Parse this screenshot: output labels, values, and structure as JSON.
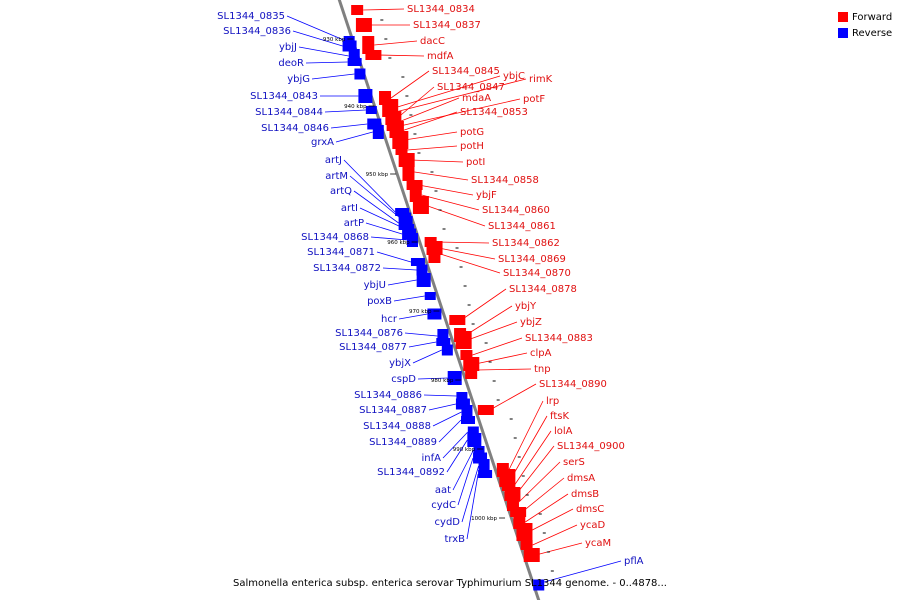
{
  "colors": {
    "forward": "#ff0000",
    "reverse": "#0000ff",
    "backbone": "#808080",
    "label_forward": "#e01010",
    "label_reverse": "#1010c0"
  },
  "legend": [
    {
      "label": "Forward",
      "color": "#ff0000"
    },
    {
      "label": "Reverse",
      "color": "#0000ff"
    }
  ],
  "caption": "Salmonella enterica subsp. enterica serovar Typhimurium SL1344 genome. - 0..4878...",
  "scale_labels": [
    "930 kbp",
    "940 kbp",
    "950 kbp",
    "960 kbp",
    "970 kbp",
    "980 kbp",
    "990 kbp",
    "1000 kbp"
  ],
  "forward_genes": [
    "SL1344_0834",
    "SL1344_0837",
    "dacC",
    "mdfA",
    "SL1344_0845",
    "ybjC",
    "rimK",
    "SL1344_0847",
    "mdaA",
    "potF",
    "SL1344_0853",
    "potG",
    "potH",
    "potI",
    "SL1344_0858",
    "ybjF",
    "SL1344_0860",
    "SL1344_0861",
    "SL1344_0862",
    "SL1344_0869",
    "SL1344_0870",
    "SL1344_0878",
    "ybjY",
    "ybjZ",
    "SL1344_0883",
    "clpA",
    "tnp",
    "SL1344_0890",
    "lrp",
    "ftsK",
    "lolA",
    "SL1344_0900",
    "serS",
    "dmsA",
    "dmsB",
    "dmsC",
    "ycaD",
    "ycaM"
  ],
  "reverse_genes": [
    "SL1344_0835",
    "SL1344_0836",
    "ybjJ",
    "deoR",
    "ybjG",
    "SL1344_0843",
    "SL1344_0844",
    "SL1344_0846",
    "grxA",
    "artJ",
    "artM",
    "artQ",
    "artI",
    "artP",
    "SL1344_0868",
    "SL1344_0871",
    "SL1344_0872",
    "ybjU",
    "poxB",
    "hcr",
    "SL1344_0876",
    "SL1344_0877",
    "ybjX",
    "cspD",
    "SL1344_0886",
    "SL1344_0887",
    "SL1344_0888",
    "SL1344_0889",
    "infA",
    "SL1344_0892",
    "aat",
    "cydC",
    "cydD",
    "trxB",
    "pflA"
  ]
}
